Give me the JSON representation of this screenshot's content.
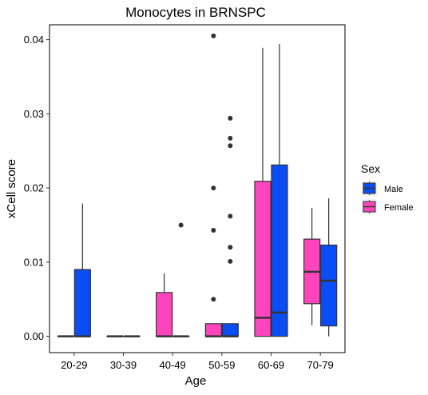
{
  "chart_data": {
    "type": "boxplot",
    "title": "Monocytes in BRNSPC",
    "xlabel": "Age",
    "ylabel": "xCell score",
    "ylim": [
      -0.0022,
      0.042
    ],
    "yticks": [
      0.0,
      0.01,
      0.02,
      0.03,
      0.04
    ],
    "ytick_labels": [
      "0.00",
      "0.01",
      "0.02",
      "0.03",
      "0.04"
    ],
    "categories": [
      "20-29",
      "30-39",
      "40-49",
      "50-59",
      "60-69",
      "70-79"
    ],
    "grid": false,
    "legend": {
      "title": "Sex",
      "position": "right",
      "entries": [
        {
          "label": "Male",
          "color": "#0a4df5"
        },
        {
          "label": "Female",
          "color": "#ff45bd"
        }
      ]
    },
    "series": [
      {
        "name": "Female",
        "color": "#ff45bd",
        "boxes": [
          {
            "category": "20-29",
            "whisker_low": 0.0,
            "q1": 0.0,
            "median": 0.0,
            "q3": 0.0,
            "whisker_high": 0.0,
            "outliers": []
          },
          {
            "category": "30-39",
            "whisker_low": 0.0,
            "q1": 0.0,
            "median": 0.0,
            "q3": 0.0,
            "whisker_high": 0.0,
            "outliers": []
          },
          {
            "category": "40-49",
            "whisker_low": 0.0,
            "q1": 0.0,
            "median": 0.0,
            "q3": 0.0059,
            "whisker_high": 0.0085,
            "outliers": []
          },
          {
            "category": "50-59",
            "whisker_low": 0.0,
            "q1": 0.0,
            "median": 0.0,
            "q3": 0.0017,
            "whisker_high": 0.0017,
            "outliers": [
              0.005,
              0.0143,
              0.02,
              0.0405
            ]
          },
          {
            "category": "60-69",
            "whisker_low": 0.0,
            "q1": 0.0,
            "median": 0.0025,
            "q3": 0.0209,
            "whisker_high": 0.0389,
            "outliers": []
          },
          {
            "category": "70-79",
            "whisker_low": 0.0015,
            "q1": 0.0044,
            "median": 0.0087,
            "q3": 0.0131,
            "whisker_high": 0.0173,
            "outliers": []
          }
        ]
      },
      {
        "name": "Male",
        "color": "#0a4df5",
        "boxes": [
          {
            "category": "20-29",
            "whisker_low": 0.0,
            "q1": 0.0,
            "median": 0.0,
            "q3": 0.009,
            "whisker_high": 0.0179,
            "outliers": []
          },
          {
            "category": "30-39",
            "whisker_low": 0.0,
            "q1": 0.0,
            "median": 0.0,
            "q3": 0.0,
            "whisker_high": 0.0,
            "outliers": []
          },
          {
            "category": "40-49",
            "whisker_low": 0.0,
            "q1": 0.0,
            "median": 0.0,
            "q3": 0.0,
            "whisker_high": 0.0,
            "outliers": [
              0.015
            ]
          },
          {
            "category": "50-59",
            "whisker_low": 0.0,
            "q1": 0.0,
            "median": 0.0,
            "q3": 0.0017,
            "whisker_high": 0.0017,
            "outliers": [
              0.0101,
              0.012,
              0.0162,
              0.0257,
              0.0267,
              0.0294
            ]
          },
          {
            "category": "60-69",
            "whisker_low": 0.0,
            "q1": 0.0,
            "median": 0.0032,
            "q3": 0.0231,
            "whisker_high": 0.0394,
            "outliers": []
          },
          {
            "category": "70-79",
            "whisker_low": 0.0,
            "q1": 0.0014,
            "median": 0.0075,
            "q3": 0.0123,
            "whisker_high": 0.0186,
            "outliers": []
          }
        ]
      }
    ]
  }
}
